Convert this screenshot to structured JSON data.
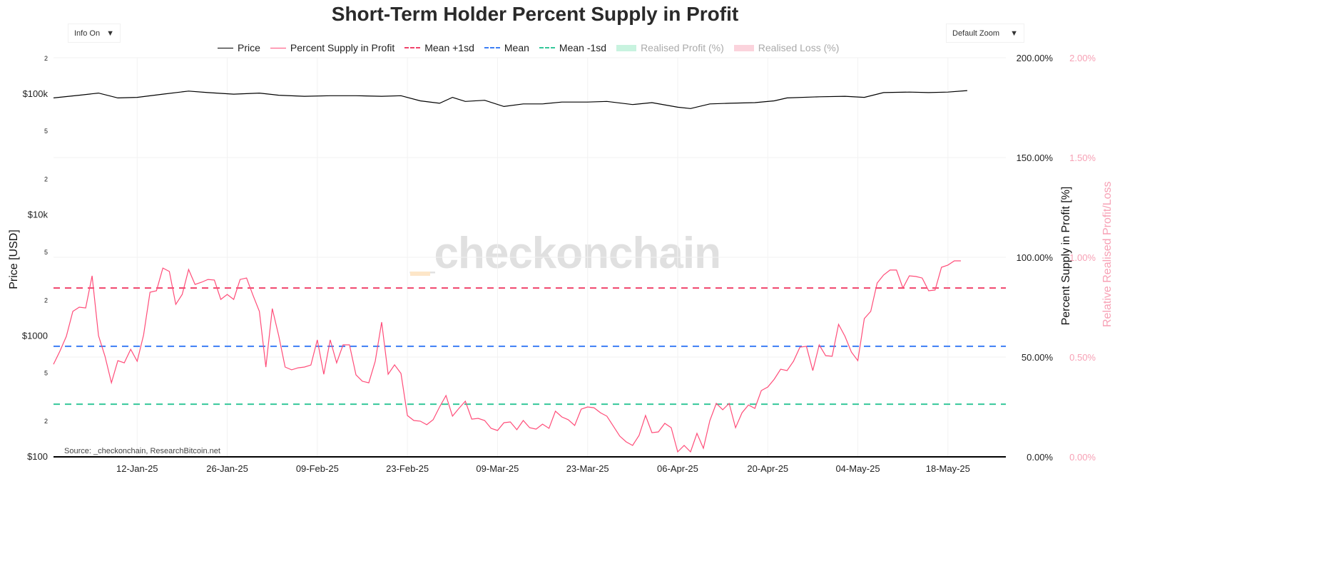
{
  "title": "Short-Term Holder Percent Supply in Profit",
  "controls": {
    "info_label": "Info On",
    "zoom_label": "Default Zoom",
    "arrow": "▼"
  },
  "legend": [
    {
      "label": "Price",
      "color": "#000000",
      "style": "solid"
    },
    {
      "label": "Percent Supply in Profit",
      "color": "#ff4d79",
      "style": "solid"
    },
    {
      "label": "Mean +1sd",
      "color": "#f0436b",
      "style": "dash"
    },
    {
      "label": "Mean",
      "color": "#3d7ef5",
      "style": "dash"
    },
    {
      "label": "Mean -1sd",
      "color": "#35c79a",
      "style": "dash"
    },
    {
      "label": "Realised Profit (%)",
      "color": "#c8f3df",
      "style": "box"
    },
    {
      "label": "Realised Loss (%)",
      "color": "#fbd3dc",
      "style": "box"
    }
  ],
  "source": "Source: _checkonchain, ResearchBitcoin.net",
  "watermark": "_checkonchain",
  "chart_data": {
    "type": "line",
    "title": "Short-Term Holder Percent Supply in Profit",
    "xlabel": "",
    "x_ticks": [
      "12-Jan-25",
      "26-Jan-25",
      "09-Feb-25",
      "23-Feb-25",
      "09-Mar-25",
      "23-Mar-25",
      "06-Apr-25",
      "20-Apr-25",
      "04-May-25",
      "18-May-25"
    ],
    "x_tick_dates": [
      "2025-01-12",
      "2025-01-26",
      "2025-02-09",
      "2025-02-23",
      "2025-03-09",
      "2025-03-23",
      "2025-04-06",
      "2025-04-20",
      "2025-05-04",
      "2025-05-18"
    ],
    "xlim": [
      "2024-12-30",
      "2025-05-27"
    ],
    "y_left": {
      "label": "Price [USD]",
      "scale": "log",
      "range": [
        100,
        200000
      ],
      "ticks": [
        {
          "v": 100,
          "t": "$100"
        },
        {
          "v": 200,
          "t": "2"
        },
        {
          "v": 500,
          "t": "5"
        },
        {
          "v": 1000,
          "t": "$1000"
        },
        {
          "v": 2000,
          "t": "2"
        },
        {
          "v": 5000,
          "t": "5"
        },
        {
          "v": 10000,
          "t": "$10k"
        },
        {
          "v": 20000,
          "t": "2"
        },
        {
          "v": 50000,
          "t": "5"
        },
        {
          "v": 100000,
          "t": "$100k"
        },
        {
          "v": 200000,
          "t": "2"
        }
      ]
    },
    "y_right": {
      "label": "Percent Supply in Profit [%]",
      "range": [
        0,
        200
      ],
      "ticks": [
        "0.00%",
        "50.00%",
        "100.00%",
        "150.00%",
        "200.00%"
      ]
    },
    "y_right2": {
      "label": "Relative Realised Profit/Loss",
      "range": [
        0,
        2
      ],
      "ticks": [
        "0.00%",
        "0.50%",
        "1.00%",
        "1.50%",
        "2.00%"
      ],
      "color": "#f7a1b5"
    },
    "grid": true,
    "legend_position": "top",
    "reference_lines": [
      {
        "name": "Mean +1sd",
        "value": 84.6
      },
      {
        "name": "Mean",
        "value": 55.4
      },
      {
        "name": "Mean -1sd",
        "value": 26.4
      }
    ],
    "series": [
      {
        "name": "Price",
        "axis": "left",
        "color": "#000000",
        "points": [
          [
            "2024-12-30",
            93000
          ],
          [
            "2025-01-03",
            98000
          ],
          [
            "2025-01-06",
            102000
          ],
          [
            "2025-01-09",
            93000
          ],
          [
            "2025-01-12",
            94000
          ],
          [
            "2025-01-16",
            100000
          ],
          [
            "2025-01-20",
            106000
          ],
          [
            "2025-01-23",
            103000
          ],
          [
            "2025-01-27",
            100000
          ],
          [
            "2025-01-31",
            102000
          ],
          [
            "2025-02-03",
            98000
          ],
          [
            "2025-02-07",
            96000
          ],
          [
            "2025-02-11",
            97000
          ],
          [
            "2025-02-15",
            97000
          ],
          [
            "2025-02-19",
            96000
          ],
          [
            "2025-02-22",
            97000
          ],
          [
            "2025-02-25",
            88000
          ],
          [
            "2025-02-28",
            84000
          ],
          [
            "2025-03-02",
            94000
          ],
          [
            "2025-03-04",
            87000
          ],
          [
            "2025-03-07",
            89000
          ],
          [
            "2025-03-10",
            79000
          ],
          [
            "2025-03-13",
            83000
          ],
          [
            "2025-03-16",
            83000
          ],
          [
            "2025-03-19",
            86000
          ],
          [
            "2025-03-23",
            86000
          ],
          [
            "2025-03-26",
            87000
          ],
          [
            "2025-03-30",
            82000
          ],
          [
            "2025-04-02",
            85000
          ],
          [
            "2025-04-06",
            78000
          ],
          [
            "2025-04-08",
            76000
          ],
          [
            "2025-04-11",
            83000
          ],
          [
            "2025-04-14",
            84000
          ],
          [
            "2025-04-18",
            85000
          ],
          [
            "2025-04-21",
            88000
          ],
          [
            "2025-04-23",
            93000
          ],
          [
            "2025-04-28",
            95000
          ],
          [
            "2025-05-02",
            96000
          ],
          [
            "2025-05-05",
            94000
          ],
          [
            "2025-05-08",
            103000
          ],
          [
            "2025-05-12",
            104000
          ],
          [
            "2025-05-15",
            103000
          ],
          [
            "2025-05-18",
            104000
          ],
          [
            "2025-05-21",
            107000
          ]
        ]
      },
      {
        "name": "Percent Supply in Profit",
        "axis": "right",
        "color": "#ff4d79",
        "points": [
          [
            "2024-12-30",
            46.4
          ],
          [
            "2024-12-31",
            53
          ],
          [
            "2025-01-01",
            60.4
          ],
          [
            "2025-01-02",
            72.9
          ],
          [
            "2025-01-03",
            75.0
          ],
          [
            "2025-01-04",
            74.6
          ],
          [
            "2025-01-05",
            90.7
          ],
          [
            "2025-01-06",
            60.7
          ],
          [
            "2025-01-07",
            50.4
          ],
          [
            "2025-01-08",
            37.1
          ],
          [
            "2025-01-09",
            48.2
          ],
          [
            "2025-01-10",
            47.1
          ],
          [
            "2025-01-11",
            53.9
          ],
          [
            "2025-01-12",
            47.9
          ],
          [
            "2025-01-13",
            61.1
          ],
          [
            "2025-01-14",
            82.5
          ],
          [
            "2025-01-15",
            83.2
          ],
          [
            "2025-01-16",
            94.6
          ],
          [
            "2025-01-17",
            92.9
          ],
          [
            "2025-01-18",
            76.4
          ],
          [
            "2025-01-19",
            81.4
          ],
          [
            "2025-01-20",
            93.9
          ],
          [
            "2025-01-21",
            86.4
          ],
          [
            "2025-01-22",
            87.5
          ],
          [
            "2025-01-23",
            88.9
          ],
          [
            "2025-01-24",
            88.6
          ],
          [
            "2025-01-25",
            78.9
          ],
          [
            "2025-01-26",
            81.4
          ],
          [
            "2025-01-27",
            78.9
          ],
          [
            "2025-01-28",
            88.9
          ],
          [
            "2025-01-29",
            89.6
          ],
          [
            "2025-01-30",
            81
          ],
          [
            "2025-01-31",
            72.9
          ],
          [
            "2025-02-01",
            45
          ],
          [
            "2025-02-02",
            74.3
          ],
          [
            "2025-02-03",
            60.7
          ],
          [
            "2025-02-04",
            45
          ],
          [
            "2025-02-05",
            43.6
          ],
          [
            "2025-02-06",
            44.6
          ],
          [
            "2025-02-07",
            45
          ],
          [
            "2025-02-08",
            46
          ],
          [
            "2025-02-09",
            58.6
          ],
          [
            "2025-02-10",
            41.4
          ],
          [
            "2025-02-11",
            58.6
          ],
          [
            "2025-02-12",
            47.1
          ],
          [
            "2025-02-13",
            56.1
          ],
          [
            "2025-02-14",
            56.1
          ],
          [
            "2025-02-15",
            41.1
          ],
          [
            "2025-02-16",
            37.9
          ],
          [
            "2025-02-17",
            37.1
          ],
          [
            "2025-02-18",
            47.9
          ],
          [
            "2025-02-19",
            67.5
          ],
          [
            "2025-02-20",
            41.4
          ],
          [
            "2025-02-21",
            46.1
          ],
          [
            "2025-02-22",
            41.8
          ],
          [
            "2025-02-23",
            20.7
          ],
          [
            "2025-02-24",
            18.2
          ],
          [
            "2025-02-25",
            17.9
          ],
          [
            "2025-02-26",
            16.1
          ],
          [
            "2025-02-27",
            18.6
          ],
          [
            "2025-02-28",
            25.0
          ],
          [
            "2025-03-01",
            30.7
          ],
          [
            "2025-03-02",
            20.4
          ],
          [
            "2025-03-03",
            24.3
          ],
          [
            "2025-03-04",
            27.9
          ],
          [
            "2025-03-05",
            18.9
          ],
          [
            "2025-03-06",
            19.3
          ],
          [
            "2025-03-07",
            18.2
          ],
          [
            "2025-03-08",
            14.3
          ],
          [
            "2025-03-09",
            13.2
          ],
          [
            "2025-03-10",
            17.1
          ],
          [
            "2025-03-11",
            17.5
          ],
          [
            "2025-03-12",
            13.6
          ],
          [
            "2025-03-13",
            18.2
          ],
          [
            "2025-03-14",
            14.6
          ],
          [
            "2025-03-15",
            13.9
          ],
          [
            "2025-03-16",
            16.4
          ],
          [
            "2025-03-17",
            14.3
          ],
          [
            "2025-03-18",
            22.9
          ],
          [
            "2025-03-19",
            20.0
          ],
          [
            "2025-03-20",
            18.6
          ],
          [
            "2025-03-21",
            15.7
          ],
          [
            "2025-03-22",
            23.9
          ],
          [
            "2025-03-23",
            25.0
          ],
          [
            "2025-03-24",
            24.6
          ],
          [
            "2025-03-25",
            22.1
          ],
          [
            "2025-03-26",
            20.4
          ],
          [
            "2025-03-27",
            15.4
          ],
          [
            "2025-03-28",
            10.4
          ],
          [
            "2025-03-29",
            7.5
          ],
          [
            "2025-03-30",
            5.7
          ],
          [
            "2025-03-31",
            10.7
          ],
          [
            "2025-04-01",
            20.7
          ],
          [
            "2025-04-02",
            12.1
          ],
          [
            "2025-04-03",
            12.5
          ],
          [
            "2025-04-04",
            16.8
          ],
          [
            "2025-04-05",
            14.6
          ],
          [
            "2025-04-06",
            2.5
          ],
          [
            "2025-04-07",
            5.7
          ],
          [
            "2025-04-08",
            2.5
          ],
          [
            "2025-04-09",
            11.8
          ],
          [
            "2025-04-10",
            4.3
          ],
          [
            "2025-04-11",
            18.2
          ],
          [
            "2025-04-12",
            26.8
          ],
          [
            "2025-04-13",
            23.6
          ],
          [
            "2025-04-14",
            26.8
          ],
          [
            "2025-04-15",
            14.6
          ],
          [
            "2025-04-16",
            22.1
          ],
          [
            "2025-04-17",
            26.0
          ],
          [
            "2025-04-18",
            24.3
          ],
          [
            "2025-04-19",
            33.2
          ],
          [
            "2025-04-20",
            35
          ],
          [
            "2025-04-21",
            38.9
          ],
          [
            "2025-04-22",
            43.9
          ],
          [
            "2025-04-23",
            43.2
          ],
          [
            "2025-04-24",
            47.9
          ],
          [
            "2025-04-25",
            55.0
          ],
          [
            "2025-04-26",
            55.4
          ],
          [
            "2025-04-27",
            43.2
          ],
          [
            "2025-04-28",
            56.1
          ],
          [
            "2025-04-29",
            50.7
          ],
          [
            "2025-04-30",
            50.4
          ],
          [
            "2025-05-01",
            66.4
          ],
          [
            "2025-05-02",
            60.4
          ],
          [
            "2025-05-03",
            52.5
          ],
          [
            "2025-05-04",
            48.2
          ],
          [
            "2025-05-05",
            69.3
          ],
          [
            "2025-05-06",
            72.9
          ],
          [
            "2025-05-07",
            87.1
          ],
          [
            "2025-05-08",
            91.1
          ],
          [
            "2025-05-09",
            93.6
          ],
          [
            "2025-05-10",
            93.6
          ],
          [
            "2025-05-11",
            84.6
          ],
          [
            "2025-05-12",
            90.7
          ],
          [
            "2025-05-13",
            90.4
          ],
          [
            "2025-05-14",
            89.6
          ],
          [
            "2025-05-15",
            83.2
          ],
          [
            "2025-05-16",
            83.6
          ],
          [
            "2025-05-17",
            95.0
          ],
          [
            "2025-05-18",
            96.1
          ],
          [
            "2025-05-19",
            98.2
          ],
          [
            "2025-05-20",
            98.2
          ]
        ]
      }
    ]
  }
}
